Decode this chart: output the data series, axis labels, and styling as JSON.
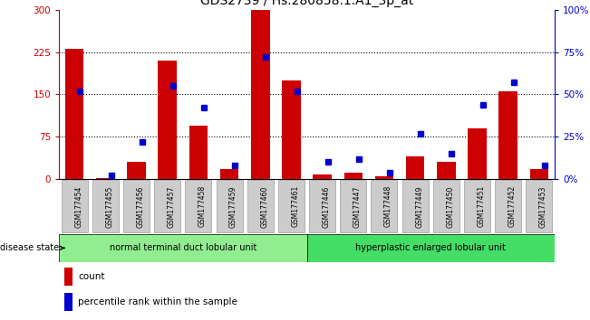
{
  "title": "GDS2739 / Hs.280858.1.A1_3p_at",
  "samples": [
    "GSM177454",
    "GSM177455",
    "GSM177456",
    "GSM177457",
    "GSM177458",
    "GSM177459",
    "GSM177460",
    "GSM177461",
    "GSM177446",
    "GSM177447",
    "GSM177448",
    "GSM177449",
    "GSM177450",
    "GSM177451",
    "GSM177452",
    "GSM177453"
  ],
  "count_values": [
    230,
    2,
    30,
    210,
    95,
    18,
    300,
    175,
    8,
    12,
    5,
    40,
    30,
    90,
    155,
    18
  ],
  "percentile_values": [
    52,
    2,
    22,
    55,
    42,
    8,
    72,
    52,
    10,
    12,
    4,
    27,
    15,
    44,
    57,
    8
  ],
  "group1_label": "normal terminal duct lobular unit",
  "group2_label": "hyperplastic enlarged lobular unit",
  "group1_count": 8,
  "group2_count": 8,
  "disease_state_label": "disease state",
  "legend_count_label": "count",
  "legend_percentile_label": "percentile rank within the sample",
  "bar_color": "#cc0000",
  "marker_color": "#0000cc",
  "left_axis_color": "#cc0000",
  "right_axis_color": "#0000cc",
  "ylim_left": [
    0,
    300
  ],
  "ylim_right": [
    0,
    100
  ],
  "yticks_left": [
    0,
    75,
    150,
    225,
    300
  ],
  "yticks_left_labels": [
    "0",
    "75",
    "150",
    "225",
    "300"
  ],
  "yticks_right": [
    0,
    25,
    50,
    75,
    100
  ],
  "yticks_right_labels": [
    "0%",
    "25%",
    "50%",
    "75%",
    "100%"
  ],
  "group1_color": "#90ee90",
  "group2_color": "#44dd66",
  "background_color": "#ffffff",
  "tick_bg_color": "#cccccc",
  "title_fontsize": 10
}
